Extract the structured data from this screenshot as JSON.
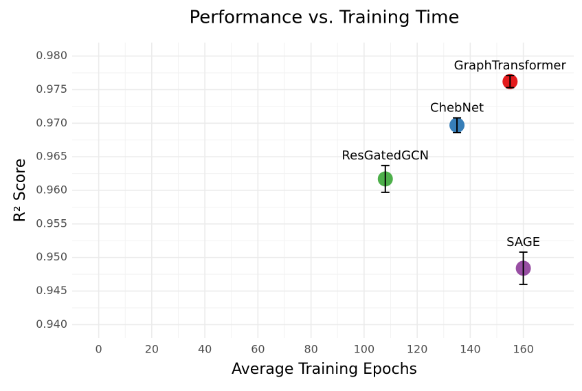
{
  "chart_data": {
    "type": "scatter",
    "title": "Performance vs. Training Time",
    "x_label": "Average Training Epochs",
    "y_label": "R² Score",
    "series": [
      {
        "name": "GraphTransformer",
        "color": "#e41a1c",
        "x": [
          155
        ],
        "values": [
          0.9762
        ],
        "error": [
          0.0009
        ]
      },
      {
        "name": "ChebNet",
        "color": "#377eb8",
        "x": [
          135
        ],
        "values": [
          0.9697
        ],
        "error": [
          0.0011
        ]
      },
      {
        "name": "ResGatedGCN",
        "color": "#4daf4a",
        "x": [
          108
        ],
        "values": [
          0.9617
        ],
        "error": [
          0.002
        ]
      },
      {
        "name": "SAGE",
        "color": "#984ea3",
        "x": [
          160
        ],
        "values": [
          0.9484
        ],
        "error": [
          0.0024
        ]
      }
    ],
    "xlim": [
      -10,
      179
    ],
    "xticks": [
      0,
      20,
      40,
      60,
      80,
      100,
      120,
      140,
      160
    ],
    "ylim": [
      0.938,
      0.982
    ],
    "yticks": [
      {
        "value": 0.94,
        "label": "0.940"
      },
      0.945,
      {
        "value": 0.95,
        "label": "0.950"
      },
      0.955,
      {
        "value": 0.96,
        "label": "0.960"
      },
      0.965,
      {
        "value": 0.97,
        "label": "0.970"
      },
      0.975,
      {
        "value": 0.98,
        "label": "0.980"
      }
    ],
    "grid": true
  }
}
